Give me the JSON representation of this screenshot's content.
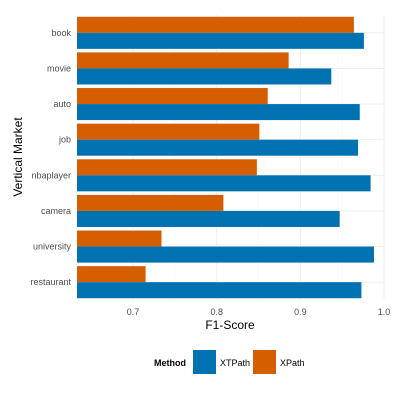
{
  "chart_data": {
    "type": "bar",
    "orientation": "horizontal",
    "title": "",
    "xlabel": "F1-Score",
    "ylabel": "Vertical Market",
    "categories": [
      "book",
      "movie",
      "auto",
      "job",
      "nbaplayer",
      "camera",
      "university",
      "restaurant"
    ],
    "series": [
      {
        "name": "XPath",
        "color": "#D55E00",
        "values": [
          0.964,
          0.886,
          0.861,
          0.851,
          0.848,
          0.808,
          0.734,
          0.715
        ]
      },
      {
        "name": "XTPath",
        "color": "#0072B2",
        "values": [
          0.976,
          0.937,
          0.971,
          0.969,
          0.984,
          0.947,
          0.988,
          0.973
        ]
      }
    ],
    "xlim": [
      0.633,
      1.0
    ],
    "xticks": [
      "0.7",
      "0.8",
      "0.9",
      "1.0"
    ],
    "grid": true,
    "legend": {
      "title": "Method",
      "placement": "bottom",
      "entries": [
        {
          "label": "XTPath",
          "color": "#0072B2"
        },
        {
          "label": "XPath",
          "color": "#D55E00"
        }
      ]
    }
  }
}
